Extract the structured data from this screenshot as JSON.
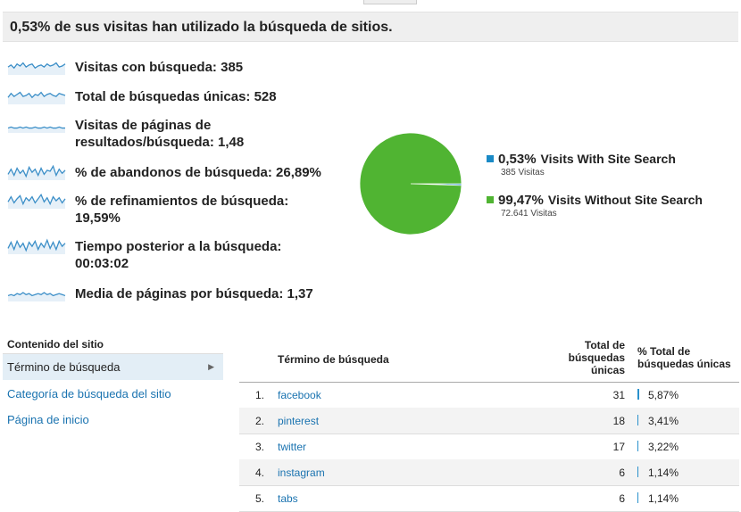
{
  "summary": "0,53% de sus visitas han utilizado la búsqueda de sitios.",
  "metrics": [
    {
      "name": "visits-with-search",
      "label": "Visitas con búsqueda: 385",
      "spark": [
        6,
        8,
        5,
        9,
        7,
        10,
        6,
        8,
        9,
        5,
        7,
        8,
        6,
        9,
        7,
        8,
        10,
        6,
        7,
        9
      ]
    },
    {
      "name": "total-unique-searches",
      "label": "Total de búsquedas únicas: 528",
      "spark": [
        5,
        9,
        6,
        8,
        10,
        6,
        7,
        9,
        5,
        8,
        7,
        10,
        6,
        8,
        9,
        7,
        6,
        9,
        8,
        7
      ]
    },
    {
      "name": "results-pageviews",
      "label": "Visitas de páginas de resultados/búsqueda: 1,48",
      "spark": [
        3,
        4,
        3,
        3,
        4,
        3,
        4,
        3,
        3,
        4,
        3,
        3,
        4,
        3,
        4,
        3,
        3,
        4,
        3,
        3
      ]
    },
    {
      "name": "search-exits",
      "label": "% de abandonos de búsqueda: 26,89%",
      "spark": [
        4,
        9,
        3,
        10,
        5,
        8,
        2,
        11,
        6,
        9,
        3,
        10,
        4,
        8,
        7,
        12,
        3,
        9,
        5,
        8
      ]
    },
    {
      "name": "search-refinements",
      "label": "% de refinamientos de búsqueda: 19,59%",
      "spark": [
        5,
        10,
        4,
        8,
        11,
        3,
        9,
        6,
        10,
        4,
        8,
        12,
        5,
        9,
        3,
        10,
        6,
        9,
        4,
        8
      ]
    },
    {
      "name": "time-after-search",
      "label": "Tiempo posterior a la búsqueda: 00:03:02",
      "spark": [
        4,
        10,
        3,
        11,
        5,
        9,
        2,
        10,
        6,
        11,
        3,
        9,
        5,
        12,
        4,
        10,
        3,
        11,
        6,
        9
      ]
    },
    {
      "name": "pages-per-search",
      "label": "Media de páginas por búsqueda: 1,37",
      "spark": [
        4,
        5,
        4,
        6,
        5,
        7,
        5,
        6,
        4,
        5,
        6,
        5,
        7,
        5,
        6,
        4,
        5,
        6,
        5,
        4
      ]
    }
  ],
  "pie": {
    "slices": [
      {
        "pct_label": "0,53%",
        "label": "Visits With Site Search",
        "visits": "385 Visitas",
        "value": 0.53,
        "color": "#1a8ac6"
      },
      {
        "pct_label": "99,47%",
        "label": "Visits Without Site Search",
        "visits": "72.641 Visitas",
        "value": 99.47,
        "color": "#50b432"
      }
    ]
  },
  "sidebar": {
    "title": "Contenido del sitio",
    "items": [
      {
        "label": "Término de búsqueda",
        "active": true
      },
      {
        "label": "Categoría de búsqueda del sitio",
        "active": false
      },
      {
        "label": "Página de inicio",
        "active": false
      }
    ]
  },
  "table": {
    "headers": {
      "term": "Término de búsqueda",
      "total": "Total de búsquedas únicas",
      "pct": "% Total de búsquedas únicas"
    },
    "rows": [
      {
        "rank": "1.",
        "term": "facebook",
        "count": "31",
        "pct": "5,87%",
        "share": 5.87
      },
      {
        "rank": "2.",
        "term": "pinterest",
        "count": "18",
        "pct": "3,41%",
        "share": 3.41
      },
      {
        "rank": "3.",
        "term": "twitter",
        "count": "17",
        "pct": "3,22%",
        "share": 3.22
      },
      {
        "rank": "4.",
        "term": "instagram",
        "count": "6",
        "pct": "1,14%",
        "share": 1.14
      },
      {
        "rank": "5.",
        "term": "tabs",
        "count": "6",
        "pct": "1,14%",
        "share": 1.14
      }
    ]
  }
}
